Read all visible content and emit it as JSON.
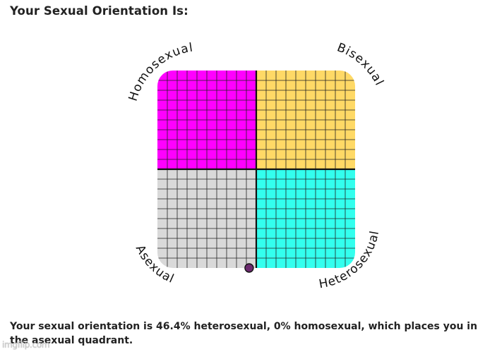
{
  "header": {
    "title": "Your Sexual Orientation Is:"
  },
  "chart_data": {
    "type": "scatter",
    "x_axis": "heterosexual",
    "y_axis": "homosexual",
    "quadrants": [
      {
        "name": "Homosexual",
        "color": "#ff00ff"
      },
      {
        "name": "Bisexual",
        "color": "#ffd966"
      },
      {
        "name": "Asexual",
        "color": "#d9d9d9"
      },
      {
        "name": "Heterosexual",
        "color": "#33ffee"
      }
    ],
    "point": {
      "heterosexual": 46.4,
      "homosexual": 0,
      "color": "#6b2a6e"
    },
    "xlim": [
      0,
      100
    ],
    "ylim": [
      0,
      100
    ],
    "grid": true
  },
  "result": {
    "text": "Your sexual orientation is 46.4% heterosexual, 0% homosexual, which places you in the asexual quadrant."
  },
  "watermark": {
    "text": "imgflip.com"
  }
}
